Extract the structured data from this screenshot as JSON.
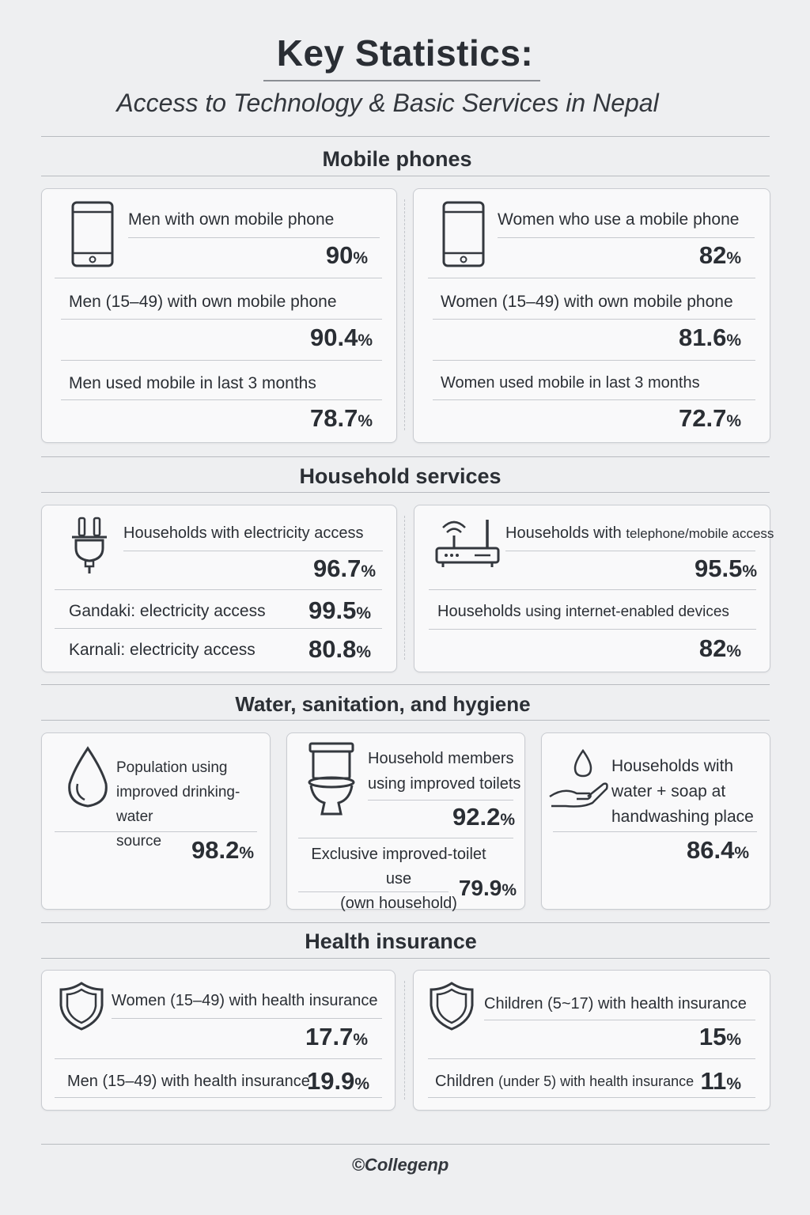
{
  "title": "Key Statistics:",
  "subtitle": "Access to Technology & Basic Services in Nepal",
  "sections": {
    "mobile": {
      "title": "Mobile phones",
      "men": {
        "main_label": "Men with own mobile phone",
        "main_value": "90",
        "r1_label": "Men (15–49) with own mobile phone",
        "r1_value": "90.4",
        "r2_label": "Men used mobile in last 3 months",
        "r2_value": "78.7",
        "icon": "mobile-phone-icon"
      },
      "women": {
        "main_label": "Women who use a mobile phone",
        "main_value": "82",
        "r1_label": "Women (15–49) with own mobile phone",
        "r1_value": "81.6",
        "r2_label": "Women used mobile in last 3 months",
        "r2_value": "72.7",
        "icon": "mobile-phone-icon"
      }
    },
    "household": {
      "title": "Household services",
      "electricity": {
        "main_label": "Households with electricity access",
        "main_value": "96.7",
        "r1_label": "Gandaki: electricity access",
        "r1_value": "99.5",
        "r2_label": "Karnali: electricity access",
        "r2_value": "80.8",
        "icon": "power-plug-icon"
      },
      "telecom": {
        "main_label_a": "Households with ",
        "main_label_b": "telephone/mobile access",
        "main_value": "95.5",
        "r1_label_a": "Households ",
        "r1_label_b": "using internet-enabled devices",
        "r1_value": "82",
        "icon": "wifi-router-icon"
      }
    },
    "wash": {
      "title": "Water, sanitation, and hygiene",
      "water": {
        "label_1": "Population using",
        "label_2": "improved drinking-water",
        "label_3": "source",
        "value": "98.2",
        "icon": "water-drop-icon"
      },
      "toilet": {
        "label_1": "Household members",
        "label_2": "using improved toilets",
        "value": "92.2",
        "r1_label_1": "Exclusive improved-toilet use",
        "r1_label_2": "(own household)",
        "r1_value": "79.9",
        "icon": "toilet-icon"
      },
      "handwash": {
        "label_1": "Households with",
        "label_2": "water + soap at",
        "label_3": "handwashing place",
        "value": "86.4",
        "icon": "hand-water-drop-icon"
      }
    },
    "insurance": {
      "title": "Health insurance",
      "adults": {
        "main_label": "Women (15–49) with health insurance",
        "main_value": "17.7",
        "r1_label": "Men (15–49) with health insurance",
        "r1_value": "19.9",
        "icon": "shield-icon"
      },
      "children": {
        "main_label": "Children (5~17) with health insurance",
        "main_value": "15",
        "r1_label_a": "Children ",
        "r1_label_b": "(under 5) with health insurance",
        "r1_value": "11",
        "icon": "shield-icon"
      }
    }
  },
  "percent_sign": "%",
  "footer": "©Collegenp"
}
